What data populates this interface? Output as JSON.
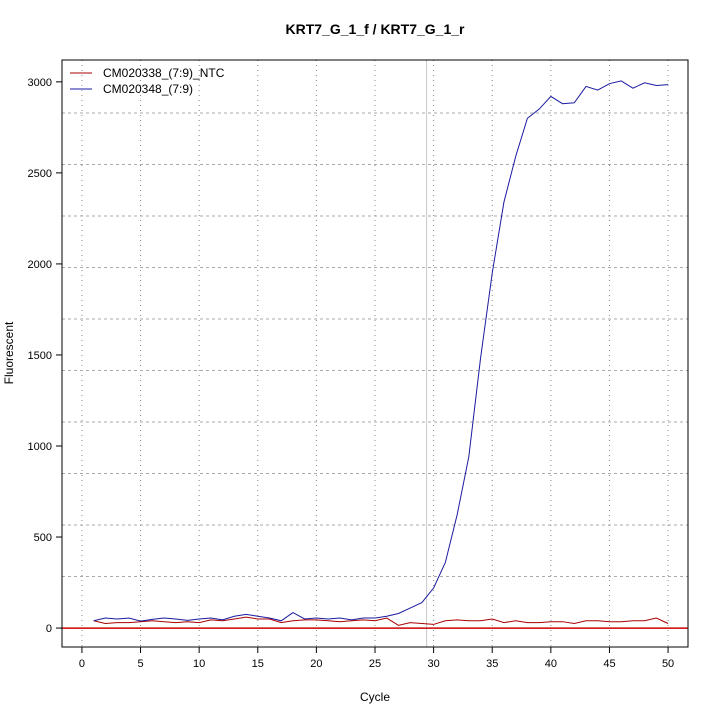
{
  "chart_data": {
    "type": "line",
    "title": "KRT7_G_1_f / KRT7_G_1_r",
    "xlabel": "Cycle",
    "ylabel": "Fluorescent",
    "xlim": [
      -1.7,
      51.7
    ],
    "ylim": [
      -104,
      3120
    ],
    "xticks": [
      0,
      5,
      10,
      15,
      20,
      25,
      30,
      35,
      40,
      45,
      50
    ],
    "yticks": [
      0,
      500,
      1000,
      1500,
      2000,
      2500,
      3000
    ],
    "grid": true,
    "legend_position": "top-left",
    "threshold_y": 0,
    "threshold_color": "#cc0000",
    "cycle_marker_x": 29.4,
    "cycle_marker_color": "#c8c8c8",
    "x": [
      1,
      2,
      3,
      4,
      5,
      6,
      7,
      8,
      9,
      10,
      11,
      12,
      13,
      14,
      15,
      16,
      17,
      18,
      19,
      20,
      21,
      22,
      23,
      24,
      25,
      26,
      27,
      28,
      29,
      30,
      31,
      32,
      33,
      34,
      35,
      36,
      37,
      38,
      39,
      40,
      41,
      42,
      43,
      44,
      45,
      46,
      47,
      48,
      49,
      50
    ],
    "series": [
      {
        "name": "CM020338_(7:9)_NTC",
        "color": "#aa0000",
        "values": [
          40,
          25,
          30,
          30,
          35,
          40,
          35,
          30,
          35,
          30,
          45,
          40,
          50,
          60,
          50,
          50,
          30,
          40,
          45,
          45,
          40,
          35,
          40,
          45,
          40,
          55,
          15,
          30,
          25,
          20,
          40,
          45,
          40,
          40,
          50,
          30,
          40,
          30,
          30,
          35,
          35,
          25,
          40,
          40,
          35,
          35,
          40,
          40,
          55,
          25
        ]
      },
      {
        "name": "CM020348_(7:9)",
        "color": "#1a1aa0",
        "values": [
          40,
          55,
          50,
          55,
          38,
          48,
          55,
          50,
          42,
          50,
          55,
          45,
          65,
          75,
          65,
          55,
          40,
          85,
          50,
          55,
          50,
          55,
          45,
          55,
          55,
          65,
          80,
          110,
          140,
          220,
          360,
          620,
          940,
          1480,
          1950,
          2340,
          2590,
          2800,
          2850,
          2920,
          2880,
          2885,
          2975,
          2955,
          2990,
          3005,
          2965,
          2995,
          2980,
          2985
        ]
      }
    ]
  }
}
